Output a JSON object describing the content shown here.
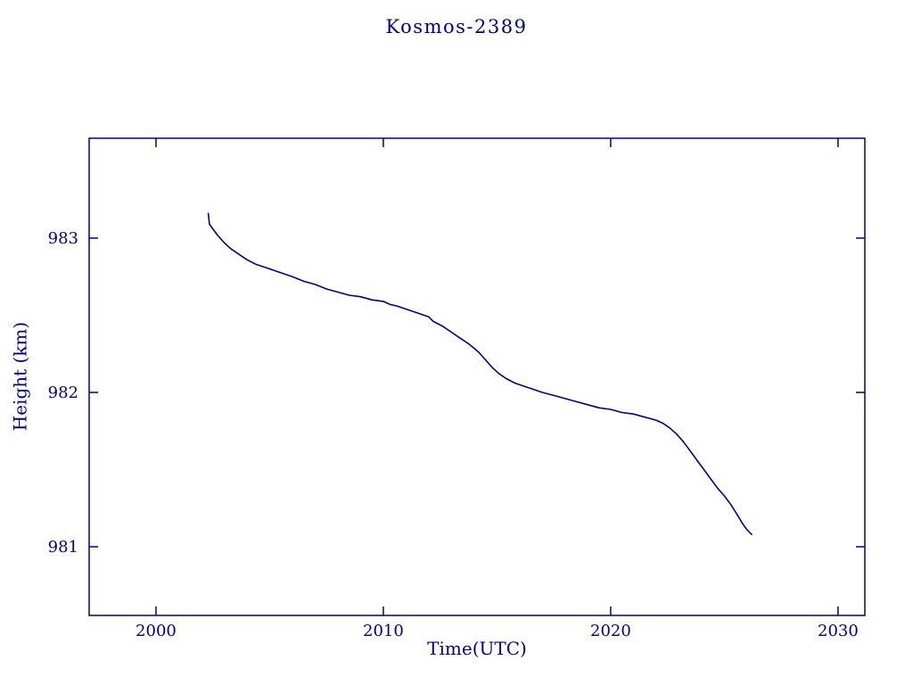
{
  "colors": {
    "accent": "#00008B",
    "background": "#ffffff"
  },
  "chart_data": {
    "type": "line",
    "title": "Kosmos-2389",
    "xlabel": "Time(UTC)",
    "ylabel": "Height (km)",
    "xlim": [
      1997.06,
      2031.18
    ],
    "ylim": [
      980.555,
      983.647
    ],
    "xticks": [
      2000,
      2010,
      2020,
      2030
    ],
    "yticks": [
      981,
      982,
      983
    ],
    "grid": false,
    "legend": false,
    "axis_color": "#00008B",
    "line_color": "#00008B",
    "series": [
      {
        "name": "Kosmos-2389 height",
        "x": [
          2002.3,
          2002.35,
          2002.5,
          2002.7,
          2003.0,
          2003.3,
          2003.6,
          2004.0,
          2004.4,
          2004.8,
          2005.2,
          2005.6,
          2006.0,
          2006.5,
          2007.0,
          2007.5,
          2008.0,
          2008.5,
          2009.0,
          2009.5,
          2010.0,
          2010.3,
          2010.6,
          2011.0,
          2011.4,
          2011.8,
          2012.0,
          2012.2,
          2012.6,
          2013.0,
          2013.4,
          2013.8,
          2014.2,
          2014.5,
          2014.8,
          2015.1,
          2015.4,
          2015.8,
          2016.2,
          2016.6,
          2017.0,
          2017.5,
          2018.0,
          2018.5,
          2019.0,
          2019.5,
          2020.0,
          2020.5,
          2021.0,
          2021.5,
          2022.0,
          2022.3,
          2022.6,
          2022.9,
          2023.2,
          2023.5,
          2023.8,
          2024.1,
          2024.4,
          2024.7,
          2025.0,
          2025.3,
          2025.6,
          2025.8,
          2026.0,
          2026.2
        ],
        "y": [
          983.16,
          983.09,
          983.06,
          983.02,
          982.97,
          982.93,
          982.9,
          982.86,
          982.83,
          982.81,
          982.79,
          982.77,
          982.75,
          982.72,
          982.7,
          982.67,
          982.65,
          982.63,
          982.62,
          982.6,
          982.59,
          982.57,
          982.56,
          982.54,
          982.52,
          982.5,
          982.49,
          982.46,
          982.43,
          982.39,
          982.35,
          982.31,
          982.26,
          982.21,
          982.16,
          982.12,
          982.09,
          982.06,
          982.04,
          982.02,
          982.0,
          981.98,
          981.96,
          981.94,
          981.92,
          981.9,
          981.89,
          981.87,
          981.86,
          981.84,
          981.82,
          981.8,
          981.77,
          981.73,
          981.68,
          981.62,
          981.56,
          981.5,
          981.44,
          981.38,
          981.33,
          981.27,
          981.2,
          981.15,
          981.11,
          981.08
        ]
      }
    ]
  }
}
